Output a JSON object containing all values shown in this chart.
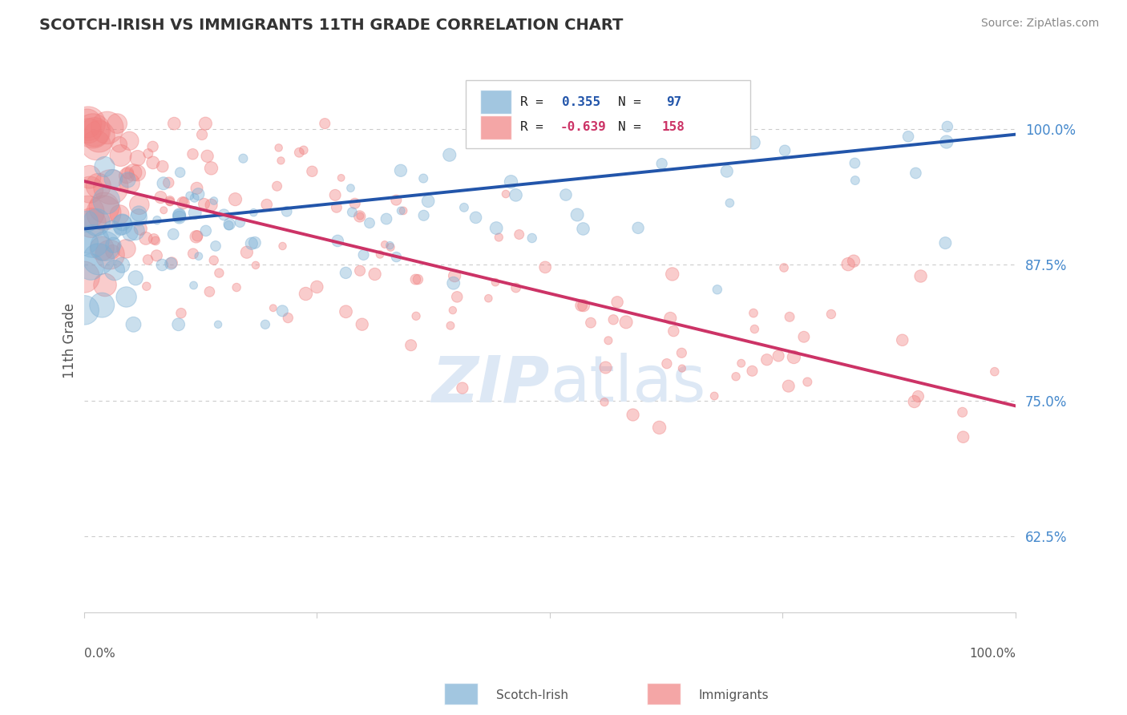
{
  "title": "SCOTCH-IRISH VS IMMIGRANTS 11TH GRADE CORRELATION CHART",
  "source": "Source: ZipAtlas.com",
  "ylabel": "11th Grade",
  "yticks": [
    0.625,
    0.75,
    0.875,
    1.0
  ],
  "ytick_labels": [
    "62.5%",
    "75.0%",
    "87.5%",
    "100.0%"
  ],
  "xlim": [
    0.0,
    1.0
  ],
  "ylim": [
    0.555,
    1.055
  ],
  "blue_R": 0.355,
  "blue_N": 97,
  "pink_R": -0.639,
  "pink_N": 158,
  "blue_color": "#7BAFD4",
  "pink_color": "#F08080",
  "blue_label": "Scotch-Irish",
  "pink_label": "Immigrants",
  "blue_line_start_x": 0.0,
  "blue_line_start_y": 0.908,
  "blue_line_end_x": 1.0,
  "blue_line_end_y": 0.995,
  "pink_line_start_x": 0.0,
  "pink_line_start_y": 0.952,
  "pink_line_end_x": 1.0,
  "pink_line_end_y": 0.745,
  "background_color": "#ffffff",
  "grid_color": "#cccccc",
  "title_color": "#333333",
  "source_color": "#888888",
  "tick_color": "#4488CC",
  "ylabel_color": "#555555",
  "watermark_color": "#dde8f5",
  "legend_text_blue": "R =   0.355",
  "legend_n_blue": "N =   97",
  "legend_text_pink": "R = -0.639",
  "legend_n_pink": "N = 158"
}
